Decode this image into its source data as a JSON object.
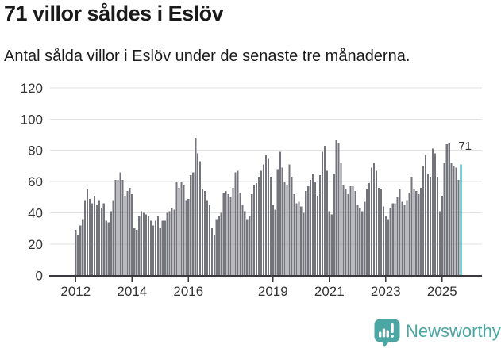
{
  "header": {
    "title": "71 villor såldes i Eslöv",
    "subtitle": "Antal sålda villor i Eslöv under de senaste tre månaderna."
  },
  "chart_data": {
    "type": "bar",
    "title": "71 villor såldes i Eslöv",
    "subtitle": "Antal sålda villor i Eslöv under de senaste tre månaderna.",
    "frequency": "monthly",
    "x_start": "2012-01",
    "x_end": "2025-09",
    "values": [
      29,
      26,
      32,
      36,
      48,
      55,
      49,
      46,
      51,
      45,
      48,
      43,
      46,
      35,
      34,
      41,
      48,
      61,
      61,
      66,
      61,
      51,
      54,
      56,
      52,
      30,
      29,
      38,
      41,
      40,
      39,
      38,
      35,
      32,
      35,
      38,
      30,
      35,
      35,
      40,
      41,
      43,
      42,
      60,
      56,
      60,
      58,
      48,
      49,
      64,
      66,
      88,
      78,
      73,
      55,
      54,
      48,
      45,
      30,
      26,
      36,
      38,
      40,
      53,
      54,
      52,
      50,
      56,
      66,
      67,
      53,
      45,
      41,
      36,
      38,
      52,
      58,
      59,
      63,
      67,
      71,
      77,
      75,
      63,
      45,
      42,
      68,
      79,
      69,
      60,
      58,
      71,
      63,
      52,
      46,
      47,
      44,
      40,
      54,
      57,
      61,
      65,
      60,
      51,
      64,
      79,
      83,
      67,
      41,
      39,
      65,
      87,
      85,
      72,
      58,
      55,
      52,
      57,
      57,
      54,
      45,
      43,
      41,
      47,
      55,
      59,
      69,
      72,
      67,
      56,
      55,
      44,
      38,
      36,
      43,
      46,
      46,
      50,
      55,
      47,
      45,
      48,
      53,
      63,
      55,
      54,
      52,
      56,
      70,
      77,
      65,
      63,
      81,
      78,
      63,
      41,
      51,
      72,
      84,
      85,
      72,
      70,
      69,
      61,
      71
    ],
    "highlight_last": true,
    "annotation": {
      "text": "71",
      "value": 71
    },
    "ylim": [
      0,
      120
    ],
    "yticks": [
      0,
      20,
      40,
      60,
      80,
      100,
      120
    ],
    "xticks": [
      2012,
      2014,
      2016,
      2019,
      2021,
      2023,
      2025
    ],
    "grid": true,
    "legend": "none",
    "colors": {
      "bar": "#74747c",
      "highlight": "#0a9aa1",
      "grid": "#e2e2e2",
      "axis": "#3a3a3e",
      "tick_label": "#333333",
      "annotation": "#2d2d2d"
    }
  },
  "footer": {
    "brand": "Newsworthy",
    "brand_color": "#4aa7a3",
    "logo_icon": "newsworthy-speech-bubble-chart-icon"
  }
}
